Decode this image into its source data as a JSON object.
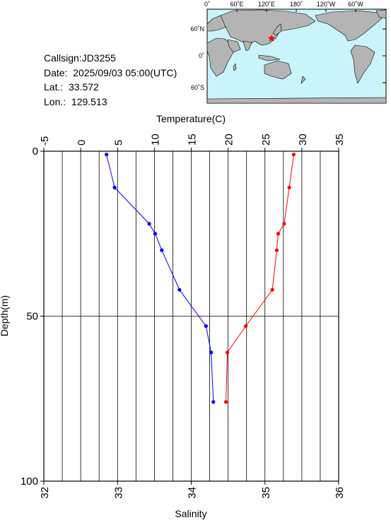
{
  "info": {
    "callsign": "Callsign:JD3255",
    "date": "Date:  2025/09/03 05:00(UTC)",
    "lat": "Lat.:  33.572",
    "lon": "Lon.:  129.513"
  },
  "map": {
    "lon_labels": [
      "0˚",
      "60˚E",
      "120˚E",
      "180˚",
      "120˚W",
      "60˚W"
    ],
    "lat_labels": [
      "60˚N",
      "0˚",
      "60˚S"
    ],
    "station_lat": 33.572,
    "station_lon": 129.513,
    "colors": {
      "ocean": "#c8f4fa",
      "land": "#b4b4b4",
      "station": "#ff0000"
    }
  },
  "chart_data": {
    "type": "line",
    "y_axis": {
      "label": "Depth(m)",
      "range": [
        0,
        100
      ],
      "ticks": [
        "0",
        "50",
        "100"
      ],
      "inverted": true
    },
    "x_axis_top": {
      "label": "Temperature(C)",
      "range": [
        -5,
        35
      ],
      "ticks": [
        "-5",
        "0",
        "5",
        "10",
        "15",
        "20",
        "25",
        "30",
        "35"
      ]
    },
    "x_axis_bottom": {
      "label": "Salinity",
      "range": [
        32,
        36
      ],
      "ticks": [
        "32",
        "33",
        "34",
        "35",
        "36"
      ]
    },
    "grid": true,
    "series": [
      {
        "axis": "top",
        "color": "#ff0000",
        "points": [
          {
            "x": 28.9,
            "y": 1
          },
          {
            "x": 28.3,
            "y": 11
          },
          {
            "x": 27.6,
            "y": 22
          },
          {
            "x": 26.8,
            "y": 25
          },
          {
            "x": 26.6,
            "y": 30
          },
          {
            "x": 26.0,
            "y": 42
          },
          {
            "x": 22.4,
            "y": 53
          },
          {
            "x": 19.9,
            "y": 61
          },
          {
            "x": 19.7,
            "y": 76
          }
        ]
      },
      {
        "axis": "bottom",
        "color": "#0000ff",
        "points": [
          {
            "x": 32.85,
            "y": 1
          },
          {
            "x": 32.96,
            "y": 11
          },
          {
            "x": 33.43,
            "y": 22
          },
          {
            "x": 33.51,
            "y": 25
          },
          {
            "x": 33.6,
            "y": 30
          },
          {
            "x": 33.84,
            "y": 42
          },
          {
            "x": 34.2,
            "y": 53
          },
          {
            "x": 34.27,
            "y": 61
          },
          {
            "x": 34.3,
            "y": 76
          }
        ]
      }
    ]
  }
}
